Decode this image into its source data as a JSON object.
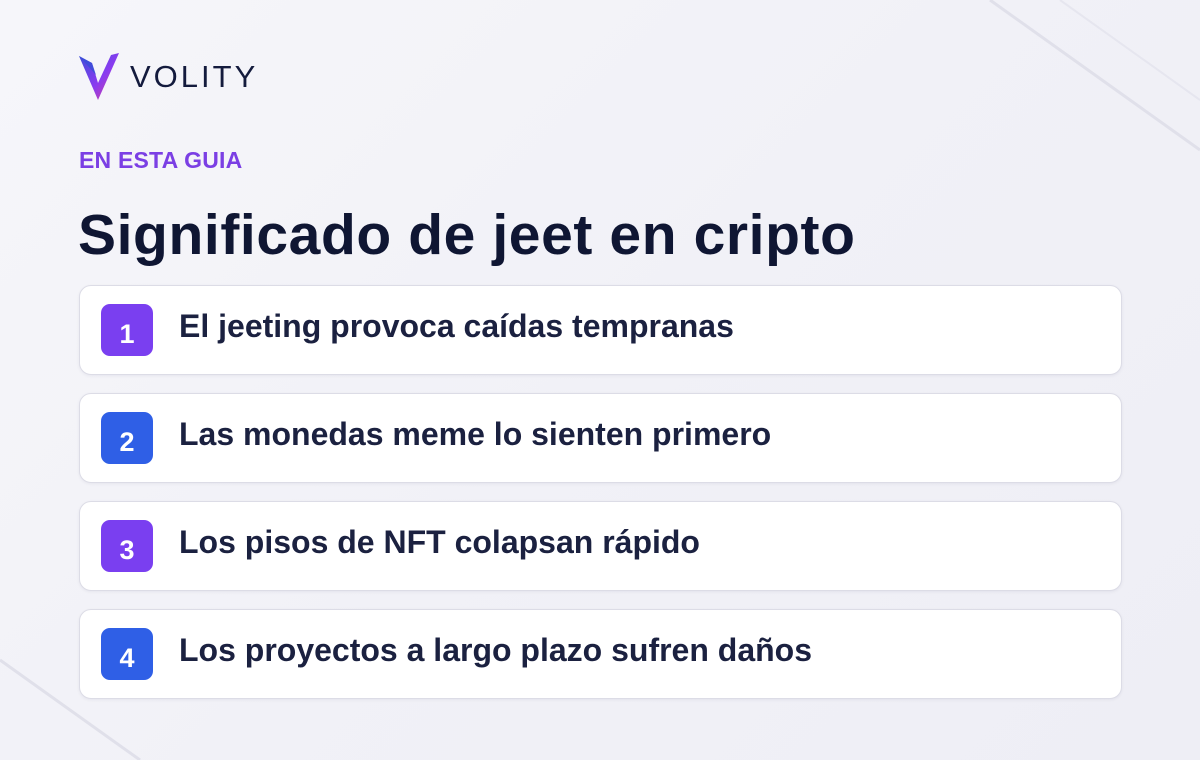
{
  "brand": {
    "name": "VOLITY",
    "logo_icon": "volity-v-logo-icon",
    "colors": {
      "text": "#141b3d",
      "gradient_start": "#3b4ed8",
      "gradient_mid": "#8a3cf0",
      "gradient_end": "#e0408f"
    }
  },
  "eyebrow": "EN ESTA GUIA",
  "title": "Significado de jeet en cripto",
  "items": [
    {
      "number": "1",
      "label": "El jeeting provoca caídas tempranas",
      "badge_color": "#7a3ff0"
    },
    {
      "number": "2",
      "label": "Las monedas meme lo sienten primero",
      "badge_color": "#2f5fe6"
    },
    {
      "number": "3",
      "label": "Los pisos de NFT colapsan rápido",
      "badge_color": "#7a3ff0"
    },
    {
      "number": "4",
      "label": "Los proyectos a largo plazo sufren daños",
      "badge_color": "#2f5fe6"
    }
  ],
  "colors": {
    "accent": "#7b3fe4",
    "title": "#0f1633",
    "item_text": "#1b2140"
  }
}
